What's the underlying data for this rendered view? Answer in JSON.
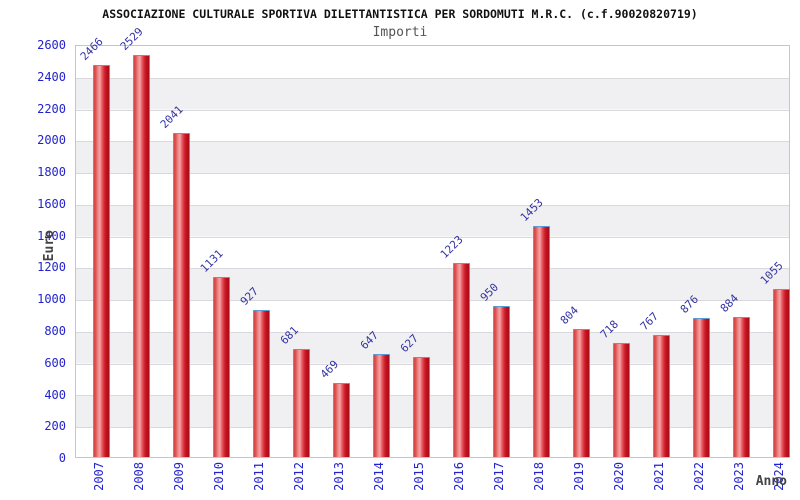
{
  "header": {
    "title": "ASSOCIAZIONE CULTURALE SPORTIVA DILETTANTISTICA PER SORDOMUTI M.R.C. (c.f.90020820719)",
    "subtitle": "Importi"
  },
  "chart_data": {
    "type": "bar",
    "title": "ASSOCIAZIONE CULTURALE SPORTIVA DILETTANTISTICA PER SORDOMUTI M.R.C. (c.f.90020820719)",
    "subtitle": "Importi",
    "xlabel": "Anno",
    "ylabel": "Euro",
    "categories": [
      "2007",
      "2008",
      "2009",
      "2010",
      "2011",
      "2012",
      "2013",
      "2014",
      "2015",
      "2016",
      "2017",
      "2018",
      "2019",
      "2020",
      "2021",
      "2022",
      "2023",
      "2024"
    ],
    "values": [
      2466,
      2529,
      2041,
      1131,
      927,
      681,
      469,
      647,
      627,
      1223,
      950,
      1453,
      804,
      718,
      767,
      876,
      884,
      1055
    ],
    "ylim": [
      0,
      2600
    ],
    "ytick_step": 200,
    "grid": "horizontal-bands-alternating",
    "legend": "none",
    "value_labels": "above-bars-rotated-45",
    "colors": {
      "bar_fill": "#d32836",
      "bar_highlight": "#f5a5a5",
      "bar_border": "#5b9bd5",
      "tick_label": "#2323cd",
      "value_label": "#3333a0",
      "band_gray": "#f0f0f3",
      "title": "#111111",
      "subtitle": "#555555",
      "axis_title": "#444444"
    }
  }
}
